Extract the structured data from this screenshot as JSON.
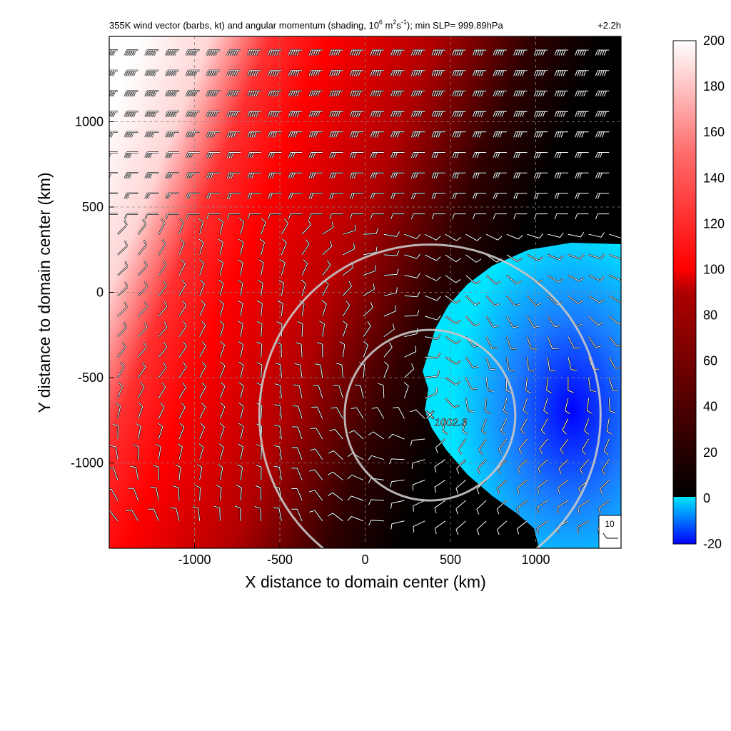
{
  "figure": {
    "title_main": "355K wind vector (barbs, kt) and angular momentum (shading, 10",
    "title_exp1": "6",
    "title_mid1": " m",
    "title_exp2": "2",
    "title_mid2": "s",
    "title_exp3": "-1",
    "title_tail": "); min SLP= 999.89hPa",
    "time_label": "+2.2h",
    "legend_value": "10"
  },
  "chart_data": {
    "type": "heatmap",
    "xlabel": "X distance to domain center (km)",
    "ylabel": "Y distance to domain center (km)",
    "xlim": [
      -1500,
      1500
    ],
    "ylim": [
      -1500,
      1500
    ],
    "x_ticks": [
      -1000,
      -500,
      0,
      500,
      1000
    ],
    "y_ticks": [
      1000,
      500,
      0,
      -500,
      -1000
    ],
    "x_tick_labels": [
      "-1000",
      "-500",
      "0",
      "500",
      "1000"
    ],
    "y_tick_labels": [
      "1000",
      "500",
      "0",
      "-500",
      "-1000"
    ],
    "grid": true,
    "colorbar": {
      "min": -20,
      "max": 200,
      "ticks": [
        200,
        180,
        160,
        140,
        120,
        100,
        80,
        60,
        40,
        20,
        0,
        -20
      ],
      "tick_labels": [
        "200",
        "180",
        "160",
        "140",
        "120",
        "100",
        "80",
        "60",
        "40",
        "20",
        "0",
        "-20"
      ],
      "colors": {
        "neg_low": "#0000ff",
        "neg_high": "#00e5ff",
        "zero": "#000000",
        "mid": "#ff0000",
        "high": "#ffffff"
      }
    },
    "center": {
      "x": 380,
      "y": -720,
      "label": "1002.3"
    },
    "circles_km": [
      500,
      1000
    ],
    "wind_barb_units": "kt",
    "min_slp_hpa": 999.89
  }
}
